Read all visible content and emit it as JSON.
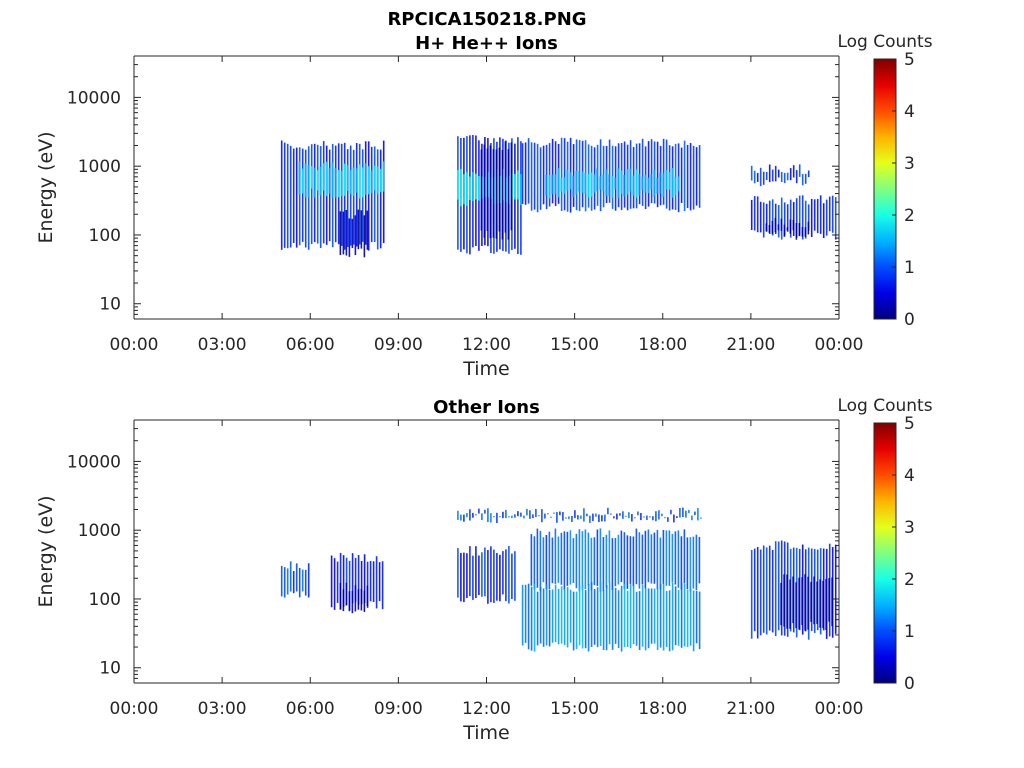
{
  "figure_title": "RPCICA150218.PNG",
  "chart_data": [
    {
      "type": "heatmap",
      "title": "H+ He++ Ions",
      "xlabel": "Time",
      "ylabel": "Energy (eV)",
      "x_ticks": [
        "00:00",
        "03:00",
        "06:00",
        "09:00",
        "12:00",
        "15:00",
        "18:00",
        "21:00",
        "00:00"
      ],
      "x_range_hours": [
        0,
        24
      ],
      "y_scale": "log",
      "y_ticks": [
        10,
        100,
        1000,
        10000
      ],
      "y_tick_labels": [
        "10",
        "100",
        "1000",
        "10000"
      ],
      "ylim": [
        6,
        40000
      ],
      "colorbar": {
        "label": "Log Counts",
        "ticks": [
          0,
          1,
          2,
          3,
          4,
          5
        ],
        "range": [
          0,
          5
        ],
        "colormap": "jet"
      },
      "regions": [
        {
          "t_start": 5.0,
          "t_end": 8.5,
          "e_min": 70,
          "e_max": 2000,
          "level": 0.8
        },
        {
          "t_start": 5.6,
          "t_end": 8.5,
          "e_min": 400,
          "e_max": 1000,
          "level": 1.7
        },
        {
          "t_start": 7.0,
          "t_end": 8.0,
          "e_min": 55,
          "e_max": 200,
          "level": 0.1
        },
        {
          "t_start": 11.0,
          "t_end": 13.2,
          "e_min": 60,
          "e_max": 2500,
          "level": 0.7
        },
        {
          "t_start": 11.0,
          "t_end": 13.2,
          "e_min": 300,
          "e_max": 800,
          "level": 1.8
        },
        {
          "t_start": 11.8,
          "t_end": 12.9,
          "e_min": 100,
          "e_max": 2000,
          "level": 0.15
        },
        {
          "t_start": 13.2,
          "t_end": 19.3,
          "e_min": 250,
          "e_max": 2200,
          "level": 0.9
        },
        {
          "t_start": 14.0,
          "t_end": 18.5,
          "e_min": 400,
          "e_max": 800,
          "level": 1.6
        },
        {
          "t_start": 21.0,
          "t_end": 23.9,
          "e_min": 100,
          "e_max": 320,
          "level": 0.8
        },
        {
          "t_start": 21.5,
          "t_end": 23.0,
          "e_min": 100,
          "e_max": 150,
          "level": 0.1
        },
        {
          "t_start": 21.0,
          "t_end": 23.0,
          "e_min": 600,
          "e_max": 900,
          "level": 0.9
        }
      ]
    },
    {
      "type": "heatmap",
      "title": "Other Ions",
      "xlabel": "Time",
      "ylabel": "Energy (eV)",
      "x_ticks": [
        "00:00",
        "03:00",
        "06:00",
        "09:00",
        "12:00",
        "15:00",
        "18:00",
        "21:00",
        "00:00"
      ],
      "x_range_hours": [
        0,
        24
      ],
      "y_scale": "log",
      "y_ticks": [
        10,
        100,
        1000,
        10000
      ],
      "y_tick_labels": [
        "10",
        "100",
        "1000",
        "10000"
      ],
      "ylim": [
        6,
        40000
      ],
      "colorbar": {
        "label": "Log Counts",
        "ticks": [
          0,
          1,
          2,
          3,
          4,
          5
        ],
        "range": [
          0,
          5
        ],
        "colormap": "jet"
      },
      "regions": [
        {
          "t_start": 5.0,
          "t_end": 6.0,
          "e_min": 110,
          "e_max": 300,
          "level": 1.0
        },
        {
          "t_start": 6.7,
          "t_end": 8.5,
          "e_min": 80,
          "e_max": 400,
          "level": 0.7
        },
        {
          "t_start": 7.0,
          "t_end": 8.0,
          "e_min": 70,
          "e_max": 150,
          "level": 0.1
        },
        {
          "t_start": 11.0,
          "t_end": 13.0,
          "e_min": 100,
          "e_max": 500,
          "level": 0.8
        },
        {
          "t_start": 11.0,
          "t_end": 19.3,
          "e_min": 1500,
          "e_max": 1800,
          "level": 1.0
        },
        {
          "t_start": 13.5,
          "t_end": 19.3,
          "e_min": 150,
          "e_max": 900,
          "level": 1.1
        },
        {
          "t_start": 13.2,
          "t_end": 19.3,
          "e_min": 20,
          "e_max": 150,
          "level": 1.3
        },
        {
          "t_start": 21.0,
          "t_end": 23.9,
          "e_min": 30,
          "e_max": 600,
          "level": 0.8
        },
        {
          "t_start": 22.0,
          "t_end": 23.8,
          "e_min": 40,
          "e_max": 200,
          "level": 0.05
        }
      ]
    }
  ]
}
